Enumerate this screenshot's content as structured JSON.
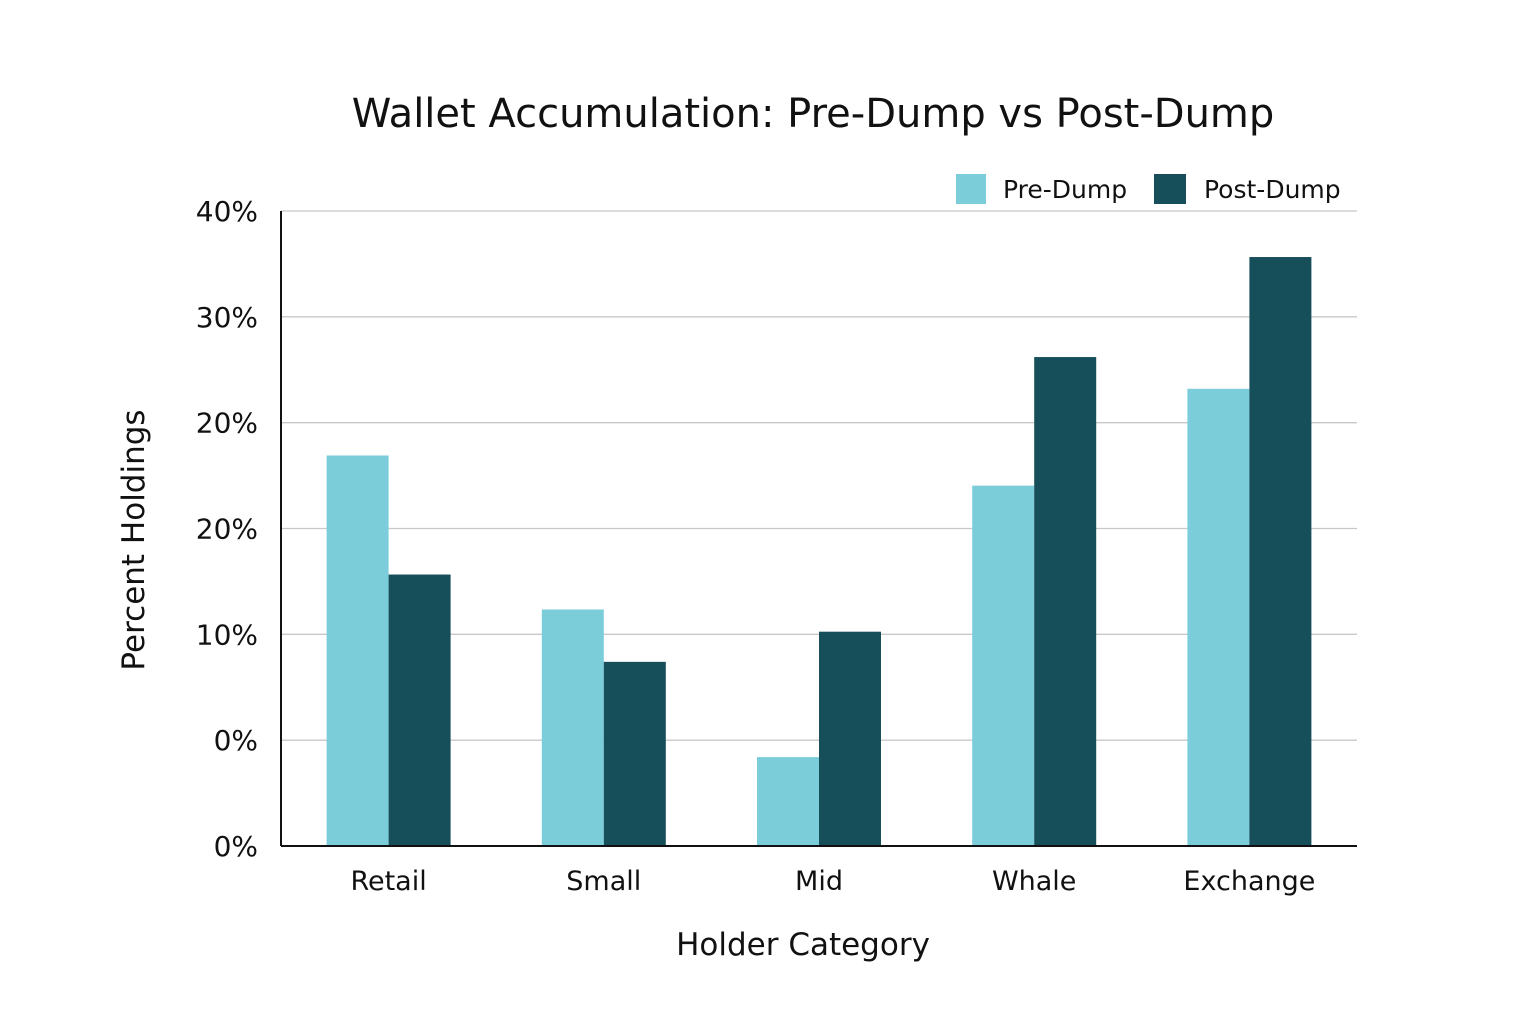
{
  "chart_data": {
    "type": "bar",
    "title": "Wallet Accumulation: Pre-Dump vs Post-Dump",
    "xlabel": "Holder Category",
    "ylabel": "Percent Holdings",
    "categories": [
      "Retail",
      "Small",
      "Mid",
      "Whale",
      "Exchange"
    ],
    "series": [
      {
        "name": "Pre-Dump",
        "color": "#7bcdd9",
        "values": [
          24.6,
          14.9,
          5.6,
          22.7,
          28.8
        ]
      },
      {
        "name": "Post-Dump",
        "color": "#164e5a",
        "values": [
          17.1,
          11.6,
          13.5,
          30.8,
          37.1
        ]
      }
    ],
    "y_tick_labels": [
      "0%",
      "0%",
      "10%",
      "20%",
      "20%",
      "30%",
      "40%"
    ],
    "ylim": [
      0,
      40
    ],
    "grid": true,
    "legend_position": "top-right"
  }
}
